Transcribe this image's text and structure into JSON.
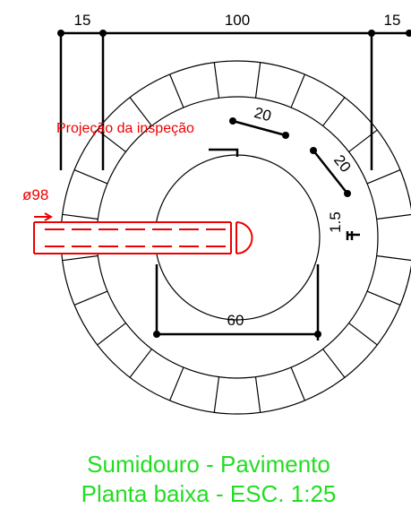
{
  "dimensions": {
    "top_left": "15",
    "top_middle": "100",
    "top_right": "15",
    "wall_a": "20",
    "wall_b": "20",
    "gap": "1.5",
    "inner": "60"
  },
  "pipe": {
    "diameter": "ø98",
    "note": "Projeção da inspeção"
  },
  "caption": {
    "line1": "Sumidouro - Pavimento",
    "line2": "Planta baixa - ESC. 1:25"
  }
}
